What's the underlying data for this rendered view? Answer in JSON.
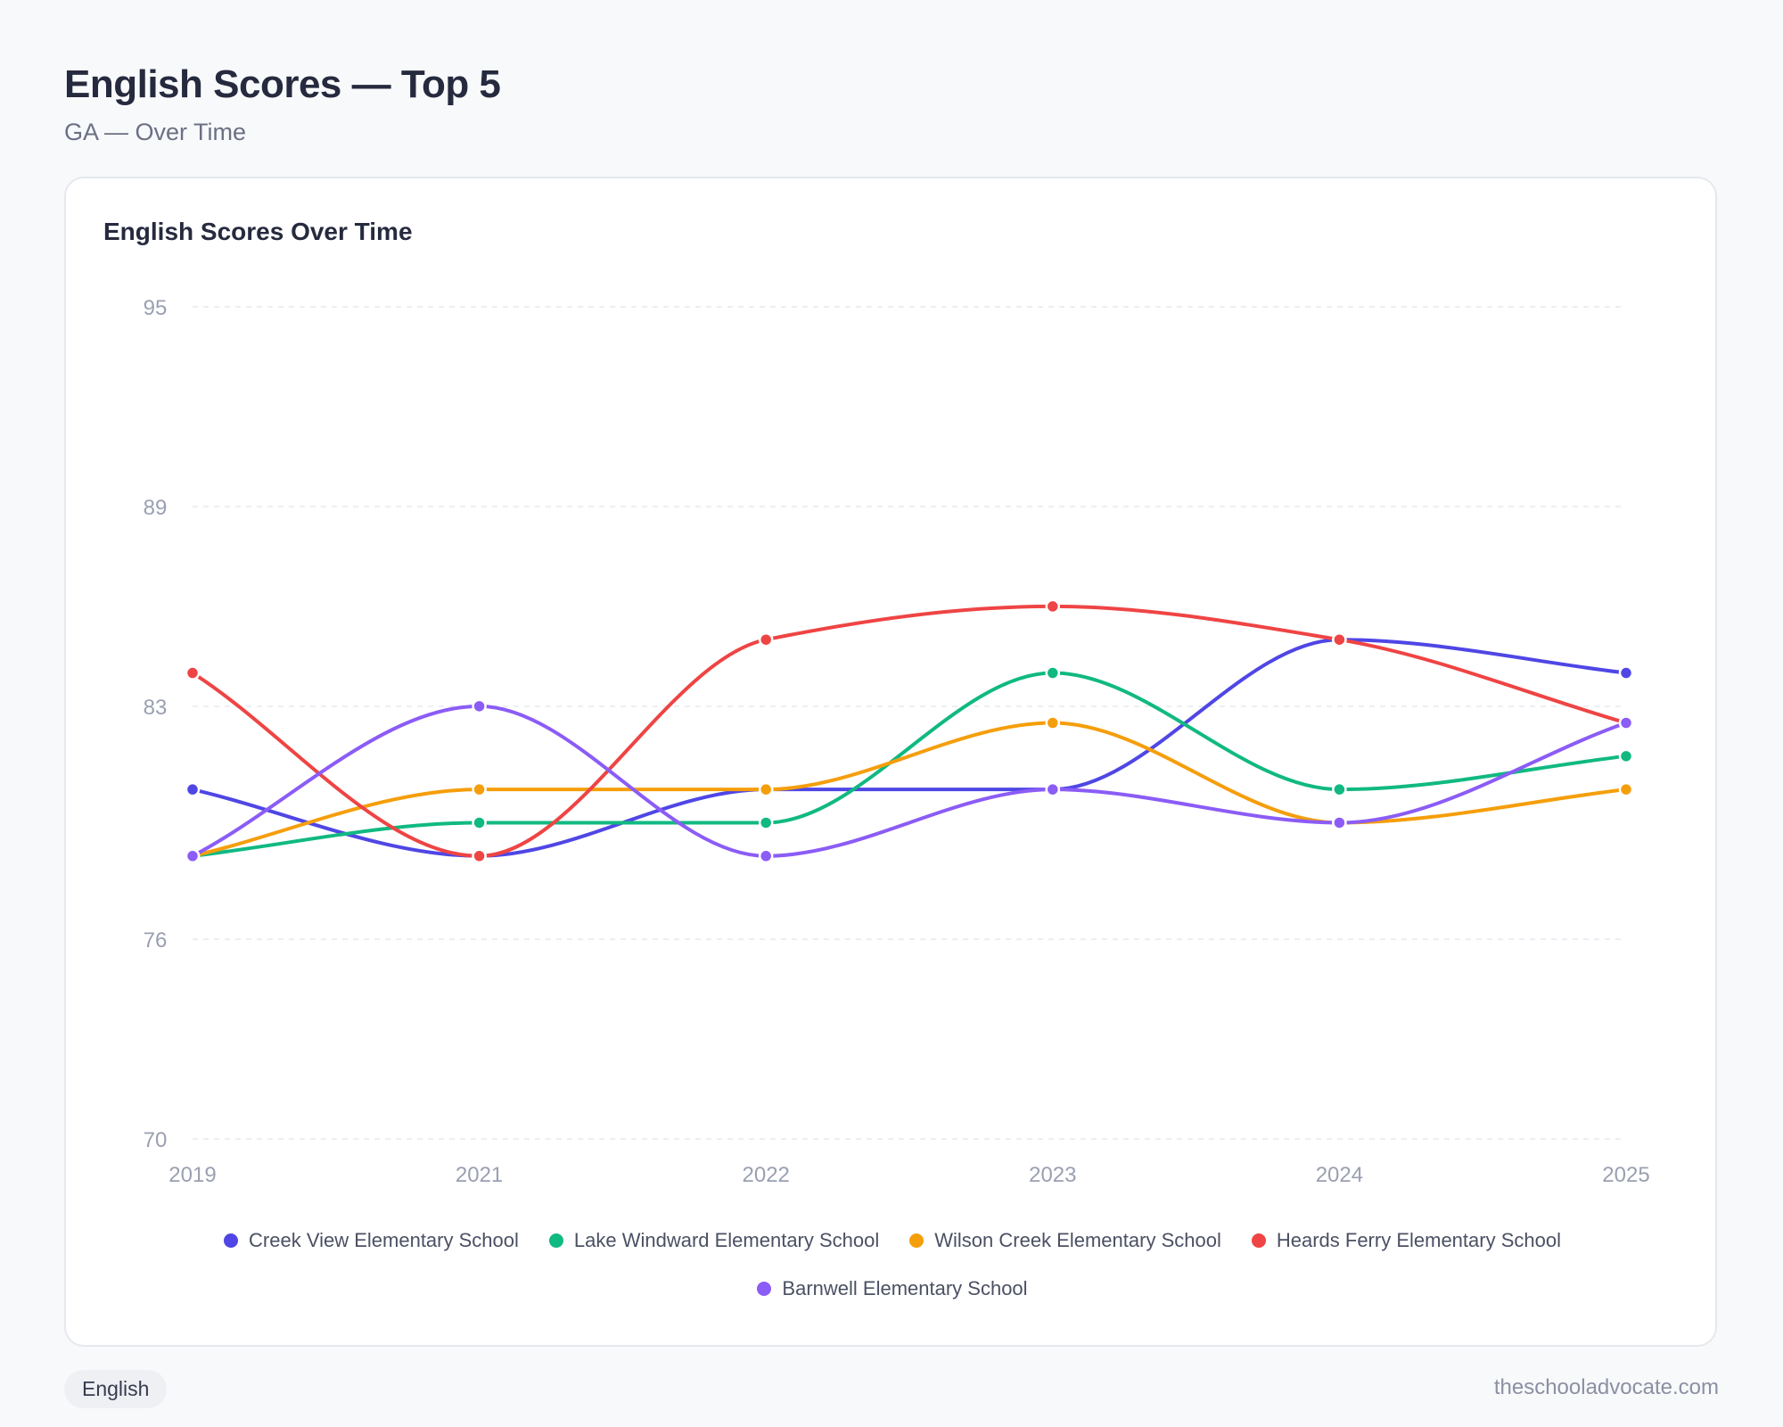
{
  "header": {
    "title": "English Scores — Top 5",
    "subtitle": "GA — Over Time"
  },
  "card": {
    "title": "English Scores Over Time"
  },
  "footer": {
    "subject_chip": "English",
    "site": "theschooladvocate.com"
  },
  "chart_data": {
    "type": "line",
    "title": "English Scores Over Time",
    "xlabel": "",
    "ylabel": "",
    "x": [
      "2019",
      "2021",
      "2022",
      "2023",
      "2024",
      "2025"
    ],
    "ylim": [
      70,
      95
    ],
    "yticks": [
      "95",
      "89",
      "83",
      "76",
      "70"
    ],
    "ytick_values": [
      95,
      89,
      83,
      76,
      70
    ],
    "grid": true,
    "legend": "bottom",
    "series": [
      {
        "name": "Creek View Elementary School",
        "color": "#4f46e5",
        "values": [
          80.5,
          78.5,
          80.5,
          80.5,
          85,
          84
        ]
      },
      {
        "name": "Lake Windward Elementary School",
        "color": "#10b981",
        "values": [
          78.5,
          79.5,
          79.5,
          84,
          80.5,
          81.5
        ]
      },
      {
        "name": "Wilson Creek Elementary School",
        "color": "#f59e0b",
        "values": [
          78.5,
          80.5,
          80.5,
          82.5,
          79.5,
          80.5
        ]
      },
      {
        "name": "Heards Ferry Elementary School",
        "color": "#ef4444",
        "values": [
          84,
          78.5,
          85,
          86,
          85,
          82.5
        ]
      },
      {
        "name": "Barnwell Elementary School",
        "color": "#8b5cf6",
        "values": [
          78.5,
          83,
          78.5,
          80.5,
          79.5,
          82.5
        ]
      }
    ]
  }
}
